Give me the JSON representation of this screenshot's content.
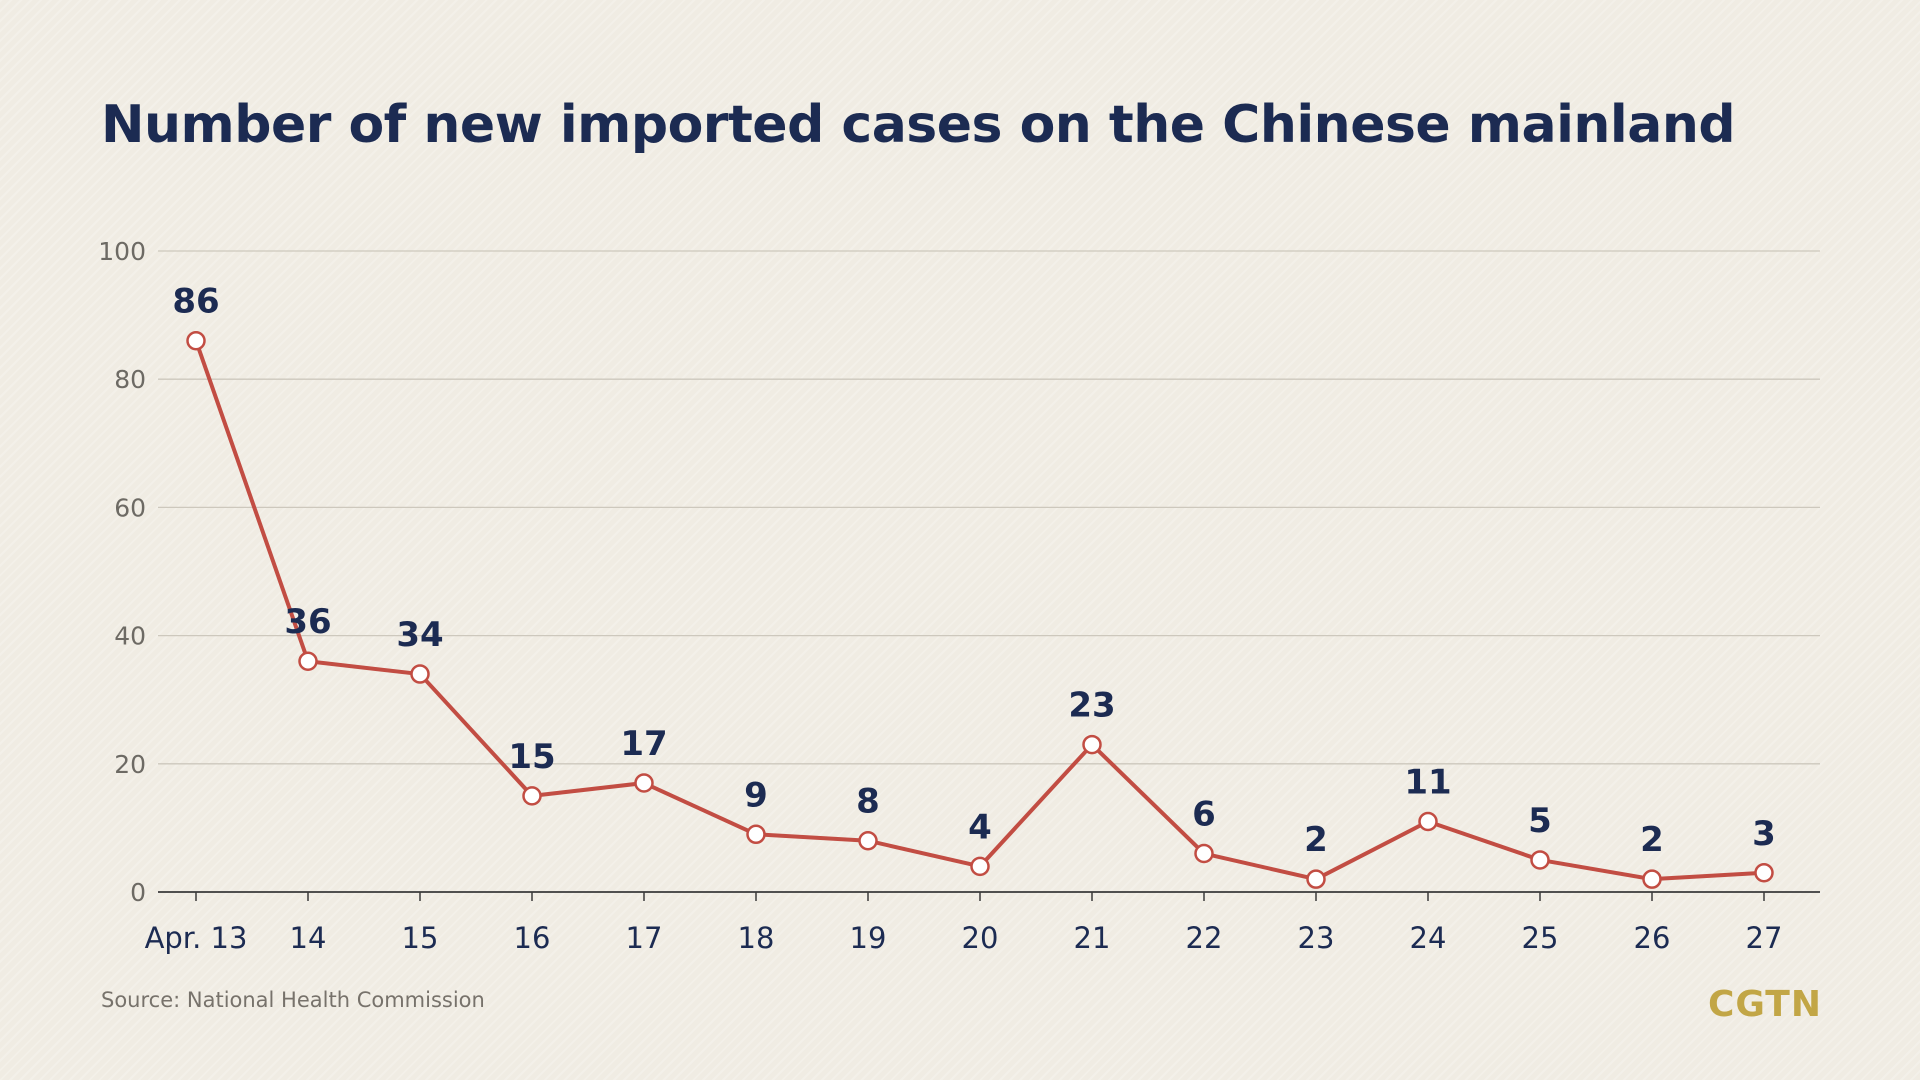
{
  "colors": {
    "background": "#f0ece3",
    "title": "#1c2b52",
    "line": "#c24d43",
    "marker_fill": "#ffffff",
    "data_label": "#1c2b52",
    "tick_label": "#6d6a64",
    "gridline": "#cdc8bd",
    "axis": "#3a3a3a",
    "source": "#77726b",
    "logo": "#c2a646"
  },
  "chart_data": {
    "type": "line",
    "title": "Number of new imported cases on the Chinese mainland",
    "xlabel": "",
    "ylabel": "",
    "categories": [
      "Apr. 13",
      "14",
      "15",
      "16",
      "17",
      "18",
      "19",
      "20",
      "21",
      "22",
      "23",
      "24",
      "25",
      "26",
      "27"
    ],
    "series": [
      {
        "values": [
          86,
          36,
          34,
          15,
          17,
          9,
          8,
          4,
          23,
          6,
          2,
          11,
          5,
          2,
          3
        ]
      }
    ],
    "yticks": [
      0,
      20,
      40,
      60,
      80,
      100
    ],
    "ylim": [
      0,
      100
    ],
    "grid": true,
    "data_labels": true,
    "legend": "none"
  },
  "footer": {
    "source": "Source: National Health Commission",
    "logo": "CGTN"
  }
}
